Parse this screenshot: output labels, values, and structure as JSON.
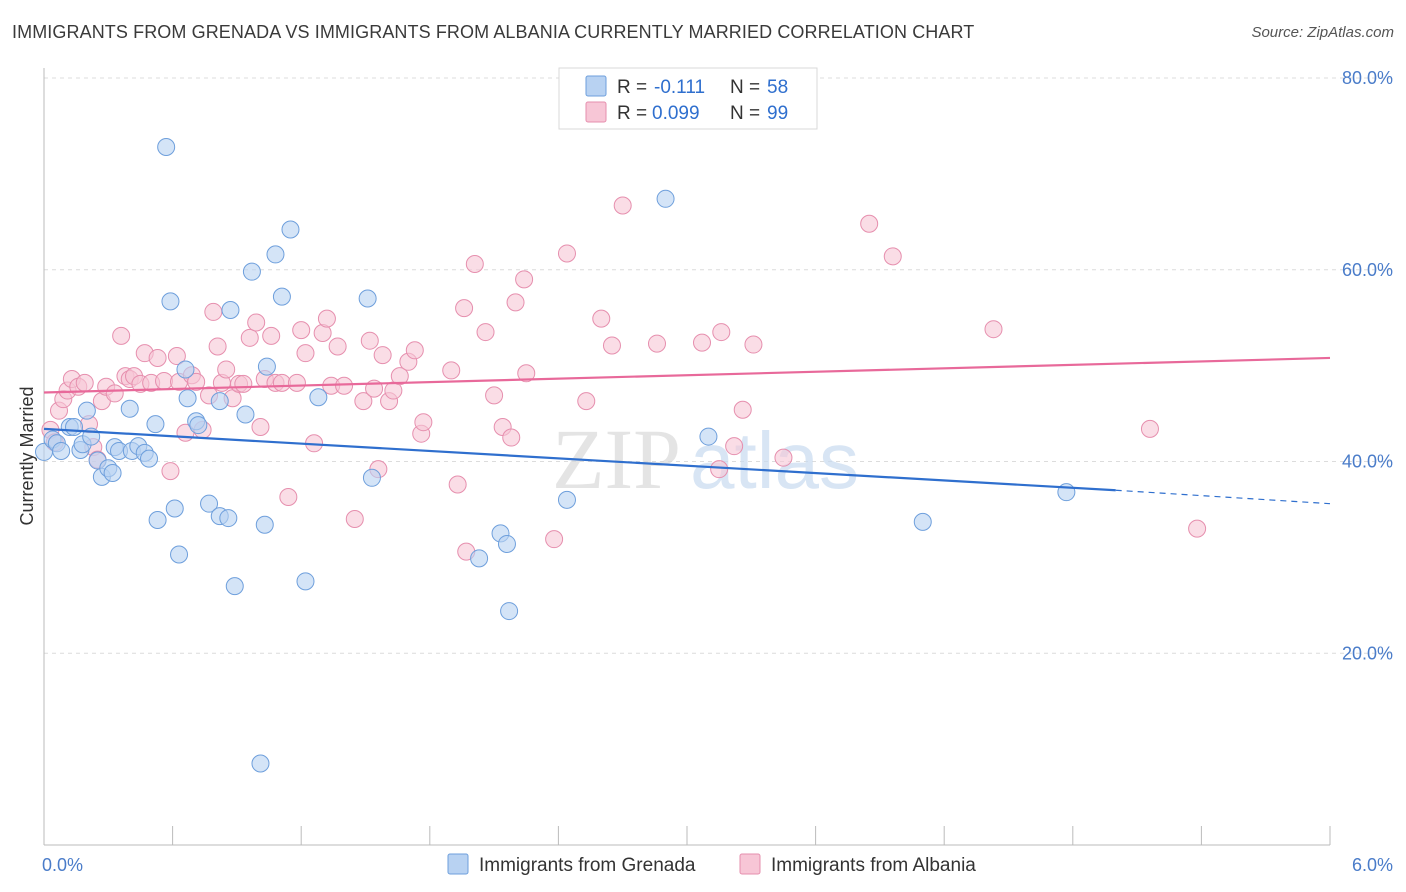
{
  "title": "IMMIGRANTS FROM GRENADA VS IMMIGRANTS FROM ALBANIA CURRENTLY MARRIED CORRELATION CHART",
  "source": "Source: ZipAtlas.com",
  "watermark": {
    "zip": "ZIP",
    "atlas": "atlas"
  },
  "colors": {
    "grenada_fill": "#b8d2f2",
    "grenada_stroke": "#6e9fdc",
    "grenada_line": "#2f6fce",
    "albania_fill": "#f7c6d6",
    "albania_stroke": "#e68fae",
    "albania_line": "#e8699a",
    "value_text": "#2f6fce",
    "grid": "#dcdcdc"
  },
  "legend": {
    "rows": [
      {
        "r_label": "R = ",
        "r_value": "-0.111",
        "n_label": "N = ",
        "n_value": "58"
      },
      {
        "r_label": "R = ",
        "r_value": "0.099",
        "n_label": "N = ",
        "n_value": "99"
      }
    ]
  },
  "bottom_legend": [
    "Immigrants from Grenada",
    "Immigrants from Albania"
  ],
  "chart_data": {
    "type": "scatter",
    "xlabel": "",
    "ylabel": "Currently Married",
    "xlim": [
      0,
      6
    ],
    "ylim": [
      0,
      82
    ],
    "x_tick_labels": [
      {
        "x": 0,
        "label": "0.0%"
      },
      {
        "x": 6,
        "label": "6.0%"
      }
    ],
    "y_tick_labels": [
      {
        "y": 20,
        "label": "20.0%"
      },
      {
        "y": 40,
        "label": "40.0%"
      },
      {
        "y": 60,
        "label": "60.0%"
      },
      {
        "y": 80,
        "label": "80.0%"
      }
    ],
    "grid": true,
    "series": [
      {
        "name": "Immigrants from Grenada",
        "trend": {
          "x0": 0.0,
          "y0": 43.4,
          "x1": 5.0,
          "y1": 37.0,
          "dash_x1": 6.0,
          "dash_y1": 35.6
        },
        "points": [
          [
            0.0,
            41.0
          ],
          [
            0.04,
            42.3
          ],
          [
            0.06,
            41.9
          ],
          [
            0.08,
            41.1
          ],
          [
            0.12,
            43.6
          ],
          [
            0.14,
            43.6
          ],
          [
            0.17,
            41.2
          ],
          [
            0.18,
            41.8
          ],
          [
            0.2,
            45.3
          ],
          [
            0.22,
            42.6
          ],
          [
            0.25,
            40.1
          ],
          [
            0.27,
            38.4
          ],
          [
            0.3,
            39.3
          ],
          [
            0.32,
            38.8
          ],
          [
            0.33,
            41.5
          ],
          [
            0.35,
            41.1
          ],
          [
            0.4,
            45.5
          ],
          [
            0.41,
            41.1
          ],
          [
            0.44,
            41.6
          ],
          [
            0.47,
            40.9
          ],
          [
            0.49,
            40.3
          ],
          [
            0.52,
            43.9
          ],
          [
            0.53,
            33.9
          ],
          [
            0.57,
            72.8
          ],
          [
            0.59,
            56.7
          ],
          [
            0.61,
            35.1
          ],
          [
            0.63,
            30.3
          ],
          [
            0.66,
            49.6
          ],
          [
            0.67,
            46.6
          ],
          [
            0.71,
            44.2
          ],
          [
            0.72,
            43.8
          ],
          [
            0.77,
            35.6
          ],
          [
            0.82,
            34.3
          ],
          [
            0.82,
            46.3
          ],
          [
            0.86,
            34.1
          ],
          [
            0.87,
            55.8
          ],
          [
            0.89,
            27.0
          ],
          [
            0.94,
            44.9
          ],
          [
            0.97,
            59.8
          ],
          [
            1.01,
            8.5
          ],
          [
            1.03,
            33.4
          ],
          [
            1.04,
            49.9
          ],
          [
            1.08,
            61.6
          ],
          [
            1.11,
            57.2
          ],
          [
            1.15,
            64.2
          ],
          [
            1.22,
            27.5
          ],
          [
            1.28,
            46.7
          ],
          [
            1.51,
            57.0
          ],
          [
            1.53,
            38.3
          ],
          [
            2.03,
            29.9
          ],
          [
            2.13,
            32.5
          ],
          [
            2.16,
            31.4
          ],
          [
            2.17,
            24.4
          ],
          [
            2.44,
            36.0
          ],
          [
            2.9,
            67.4
          ],
          [
            3.1,
            42.6
          ],
          [
            4.1,
            33.7
          ],
          [
            4.77,
            36.8
          ]
        ]
      },
      {
        "name": "Immigrants from Albania",
        "trend": {
          "x0": 0.0,
          "y0": 47.2,
          "x1": 6.0,
          "y1": 50.8
        },
        "points": [
          [
            0.03,
            43.3
          ],
          [
            0.05,
            42.0
          ],
          [
            0.07,
            45.3
          ],
          [
            0.09,
            46.5
          ],
          [
            0.11,
            47.4
          ],
          [
            0.13,
            48.6
          ],
          [
            0.16,
            47.8
          ],
          [
            0.19,
            48.2
          ],
          [
            0.21,
            43.9
          ],
          [
            0.23,
            41.5
          ],
          [
            0.25,
            40.2
          ],
          [
            0.27,
            46.3
          ],
          [
            0.29,
            47.8
          ],
          [
            0.33,
            47.1
          ],
          [
            0.36,
            53.1
          ],
          [
            0.38,
            48.9
          ],
          [
            0.4,
            48.6
          ],
          [
            0.42,
            48.9
          ],
          [
            0.45,
            48.1
          ],
          [
            0.47,
            51.3
          ],
          [
            0.5,
            48.2
          ],
          [
            0.53,
            50.8
          ],
          [
            0.56,
            48.4
          ],
          [
            0.59,
            39.0
          ],
          [
            0.62,
            51.0
          ],
          [
            0.63,
            48.3
          ],
          [
            0.66,
            43.0
          ],
          [
            0.69,
            49.0
          ],
          [
            0.71,
            48.3
          ],
          [
            0.74,
            43.3
          ],
          [
            0.77,
            46.9
          ],
          [
            0.79,
            55.6
          ],
          [
            0.81,
            52.0
          ],
          [
            0.83,
            48.2
          ],
          [
            0.85,
            49.6
          ],
          [
            0.88,
            46.6
          ],
          [
            0.91,
            48.1
          ],
          [
            0.93,
            48.1
          ],
          [
            0.96,
            52.9
          ],
          [
            0.99,
            54.5
          ],
          [
            1.01,
            43.6
          ],
          [
            1.03,
            48.6
          ],
          [
            1.06,
            53.1
          ],
          [
            1.08,
            48.2
          ],
          [
            1.11,
            48.2
          ],
          [
            1.14,
            36.3
          ],
          [
            1.18,
            48.2
          ],
          [
            1.2,
            53.7
          ],
          [
            1.22,
            51.3
          ],
          [
            1.26,
            41.9
          ],
          [
            1.3,
            53.4
          ],
          [
            1.32,
            54.9
          ],
          [
            1.34,
            47.9
          ],
          [
            1.37,
            52.0
          ],
          [
            1.4,
            47.9
          ],
          [
            1.45,
            34.0
          ],
          [
            1.49,
            46.3
          ],
          [
            1.52,
            52.6
          ],
          [
            1.54,
            47.6
          ],
          [
            1.56,
            39.2
          ],
          [
            1.58,
            51.1
          ],
          [
            1.61,
            46.3
          ],
          [
            1.63,
            47.4
          ],
          [
            1.66,
            48.9
          ],
          [
            1.7,
            50.4
          ],
          [
            1.73,
            51.6
          ],
          [
            1.76,
            42.9
          ],
          [
            1.77,
            44.1
          ],
          [
            1.9,
            49.5
          ],
          [
            1.93,
            37.6
          ],
          [
            1.96,
            56.0
          ],
          [
            1.97,
            30.6
          ],
          [
            2.01,
            60.6
          ],
          [
            2.06,
            53.5
          ],
          [
            2.1,
            46.9
          ],
          [
            2.14,
            43.6
          ],
          [
            2.18,
            42.5
          ],
          [
            2.2,
            56.6
          ],
          [
            2.24,
            59.0
          ],
          [
            2.25,
            49.2
          ],
          [
            2.38,
            31.9
          ],
          [
            2.44,
            61.7
          ],
          [
            2.53,
            46.3
          ],
          [
            2.6,
            54.9
          ],
          [
            2.65,
            52.1
          ],
          [
            2.7,
            66.7
          ],
          [
            2.86,
            52.3
          ],
          [
            3.07,
            52.4
          ],
          [
            3.16,
            53.5
          ],
          [
            3.15,
            39.2
          ],
          [
            3.22,
            41.6
          ],
          [
            3.26,
            45.4
          ],
          [
            3.31,
            52.2
          ],
          [
            3.45,
            40.4
          ],
          [
            3.85,
            64.8
          ],
          [
            3.96,
            61.4
          ],
          [
            4.43,
            53.8
          ],
          [
            5.16,
            43.4
          ],
          [
            5.38,
            33.0
          ]
        ]
      }
    ]
  }
}
